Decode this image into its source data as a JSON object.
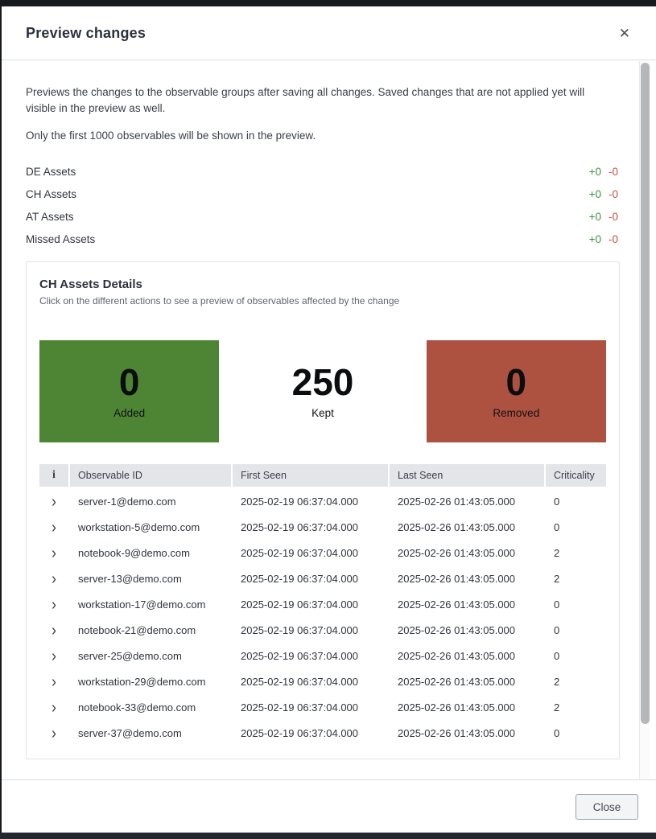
{
  "modal": {
    "title": "Preview changes",
    "close_icon": "✕",
    "description_line1": "Previews the changes to the observable groups after saving all changes. Saved changes that are not applied yet will visible in the preview as well.",
    "description_line2": "Only the first 1000 observables will be shown in the preview.",
    "footer": {
      "close_label": "Close"
    }
  },
  "groups": [
    {
      "name": "DE Assets",
      "added": "+0",
      "removed": "-0"
    },
    {
      "name": "CH Assets",
      "added": "+0",
      "removed": "-0"
    },
    {
      "name": "AT Assets",
      "added": "+0",
      "removed": "-0"
    },
    {
      "name": "Missed Assets",
      "added": "+0",
      "removed": "-0"
    }
  ],
  "details": {
    "title": "CH Assets Details",
    "subtitle": "Click on the different actions to see a preview of observables affected by the change",
    "stats": [
      {
        "value": "0",
        "label": "Added",
        "bg": "#4e8534"
      },
      {
        "value": "250",
        "label": "Kept",
        "bg": "#ffffff"
      },
      {
        "value": "0",
        "label": "Removed",
        "bg": "#ad5140"
      }
    ],
    "table": {
      "info_header": "i",
      "expand_icon": "›",
      "columns": {
        "observable_id": "Observable ID",
        "first_seen": "First Seen",
        "last_seen": "Last Seen",
        "criticality": "Criticality"
      },
      "rows": [
        {
          "id": "server-1@demo.com",
          "first_seen": "2025-02-19 06:37:04.000",
          "last_seen": "2025-02-26 01:43:05.000",
          "criticality": "0"
        },
        {
          "id": "workstation-5@demo.com",
          "first_seen": "2025-02-19 06:37:04.000",
          "last_seen": "2025-02-26 01:43:05.000",
          "criticality": "0"
        },
        {
          "id": "notebook-9@demo.com",
          "first_seen": "2025-02-19 06:37:04.000",
          "last_seen": "2025-02-26 01:43:05.000",
          "criticality": "2"
        },
        {
          "id": "server-13@demo.com",
          "first_seen": "2025-02-19 06:37:04.000",
          "last_seen": "2025-02-26 01:43:05.000",
          "criticality": "2"
        },
        {
          "id": "workstation-17@demo.com",
          "first_seen": "2025-02-19 06:37:04.000",
          "last_seen": "2025-02-26 01:43:05.000",
          "criticality": "0"
        },
        {
          "id": "notebook-21@demo.com",
          "first_seen": "2025-02-19 06:37:04.000",
          "last_seen": "2025-02-26 01:43:05.000",
          "criticality": "0"
        },
        {
          "id": "server-25@demo.com",
          "first_seen": "2025-02-19 06:37:04.000",
          "last_seen": "2025-02-26 01:43:05.000",
          "criticality": "0"
        },
        {
          "id": "workstation-29@demo.com",
          "first_seen": "2025-02-19 06:37:04.000",
          "last_seen": "2025-02-26 01:43:05.000",
          "criticality": "2"
        },
        {
          "id": "notebook-33@demo.com",
          "first_seen": "2025-02-19 06:37:04.000",
          "last_seen": "2025-02-26 01:43:05.000",
          "criticality": "2"
        },
        {
          "id": "server-37@demo.com",
          "first_seen": "2025-02-19 06:37:04.000",
          "last_seen": "2025-02-26 01:43:05.000",
          "criticality": "0"
        }
      ]
    }
  },
  "colors": {
    "added_box_green": "#4e8534",
    "removed_box_red": "#ad5140",
    "badge_added_green": "#3f9142",
    "badge_removed_red": "#c4503c"
  }
}
